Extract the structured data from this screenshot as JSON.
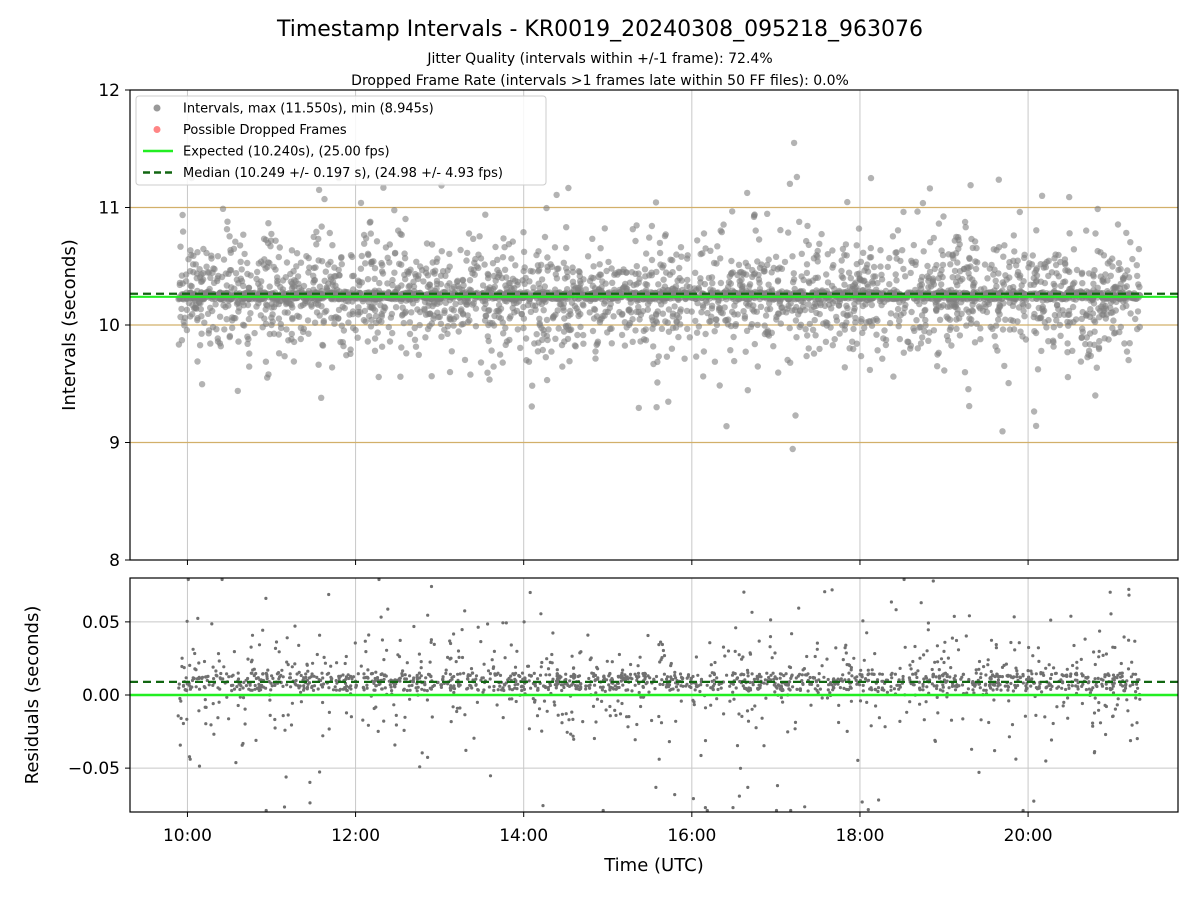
{
  "title": "Timestamp Intervals - KR0019_20240308_095218_963076",
  "subtitle_1": "Jitter Quality (intervals within +/-1 frame): 72.4%",
  "subtitle_2": "Dropped Frame Rate (intervals >1 frames late within 50 FF files): 0.0%",
  "colors": {
    "points": "#808080",
    "dropped": "#ff6666",
    "expected": "#22ee22",
    "median": "#116611",
    "threshold": "#d2b06a",
    "grid": "#c8c8c8"
  },
  "chart_data": [
    {
      "type": "scatter",
      "panel": "intervals",
      "xlabel": "",
      "ylabel": "Intervals (seconds)",
      "x_range": [
        "09:19",
        "21:47"
      ],
      "ylim": [
        8,
        12
      ],
      "y_ticks": [
        "8",
        "9",
        "10",
        "11",
        "12"
      ],
      "grid": true,
      "legend_position": "top-left",
      "legend": [
        {
          "label": "Intervals, max (11.550s), min (8.945s)",
          "kind": "point",
          "color": "#808080"
        },
        {
          "label": "Possible Dropped Frames",
          "kind": "point",
          "color": "#ff6666"
        },
        {
          "label": "Expected (10.240s), (25.00 fps)",
          "kind": "line",
          "color": "#22ee22"
        },
        {
          "label": "Median (10.249 +/- 0.197 s), (24.98 +/- 4.93 fps)",
          "kind": "dashed",
          "color": "#116611"
        }
      ],
      "series": [
        {
          "name": "Intervals, max (11.550s), min (8.945s)",
          "t_start": "09:53",
          "t_end": "21:20",
          "count": 3950,
          "center": 10.249,
          "std": 0.197,
          "max": 11.55,
          "min": 8.945,
          "notable_points": [
            {
              "x": "17:13",
              "y": 11.55
            },
            {
              "x": "17:15",
              "y": 11.26
            },
            {
              "x": "19:19",
              "y": 11.19
            },
            {
              "x": "11:34",
              "y": 11.15
            },
            {
              "x": "20:10",
              "y": 11.1
            },
            {
              "x": "17:12",
              "y": 8.945
            },
            {
              "x": "17:14",
              "y": 9.23
            },
            {
              "x": "19:18",
              "y": 9.31
            },
            {
              "x": "20:48",
              "y": 9.4
            }
          ]
        },
        {
          "name": "Possible Dropped Frames",
          "values": []
        }
      ],
      "reference_lines": [
        {
          "name": "Expected (10.240s), (25.00 fps)",
          "y": 10.24,
          "style": "solid"
        },
        {
          "name": "Median (10.249 +/- 0.197 s), (24.98 +/- 4.93 fps)",
          "y": 10.249,
          "style": "dashed"
        },
        {
          "name": "threshold-upper-1",
          "y": 11.0,
          "style": "thin"
        },
        {
          "name": "threshold-upper-2",
          "y": 10.0,
          "style": "thin"
        },
        {
          "name": "threshold-lower",
          "y": 9.0,
          "style": "thin"
        }
      ]
    },
    {
      "type": "scatter",
      "panel": "residuals",
      "xlabel": "Time (UTC)",
      "ylabel": "Residuals (seconds)",
      "x_range": [
        "09:19",
        "21:47"
      ],
      "ylim": [
        -0.08,
        0.08
      ],
      "y_ticks": [
        "−0.05",
        "0.00",
        "0.05"
      ],
      "x_ticks": [
        "10:00",
        "12:00",
        "14:00",
        "16:00",
        "18:00",
        "20:00"
      ],
      "grid": true,
      "series": [
        {
          "name": "",
          "t_start": "09:53",
          "t_end": "21:20",
          "count": 1800,
          "center": 0.009,
          "spread": 0.012,
          "outlier_fraction": 0.08
        }
      ],
      "reference_lines": [
        {
          "name": "expected",
          "y": 0.0,
          "style": "solid"
        },
        {
          "name": "median",
          "y": 0.009,
          "style": "dashed"
        }
      ]
    }
  ]
}
